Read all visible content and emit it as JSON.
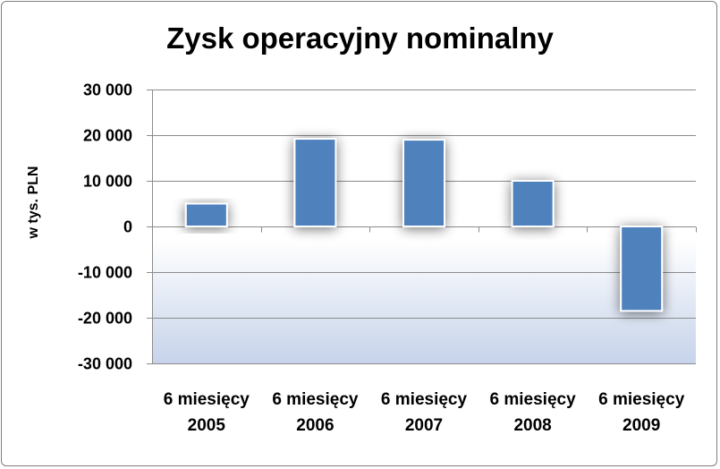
{
  "chart_data": {
    "type": "bar",
    "title": "Zysk operacyjny nominalny",
    "xlabel": "",
    "ylabel": "w tys. PLN",
    "categories": [
      [
        "6 miesięcy",
        "2005"
      ],
      [
        "6 miesięcy",
        "2006"
      ],
      [
        "6 miesięcy",
        "2007"
      ],
      [
        "6 miesięcy",
        "2008"
      ],
      [
        "6 miesięcy",
        "2009"
      ]
    ],
    "values": [
      5000,
      19200,
      19000,
      10000,
      -18500
    ],
    "ylim": [
      -30000,
      30000
    ],
    "yticks": [
      30000,
      20000,
      10000,
      0,
      -10000,
      -20000,
      -30000
    ],
    "ytick_labels": [
      "30 000",
      "20 000",
      "10 000",
      "0",
      "-10 000",
      "-20 000",
      "-30 000"
    ],
    "grid": true,
    "legend": "none",
    "colors": {
      "bar": "#4f81bd",
      "bar_border": "#ffffff",
      "grid": "#8c8c8c",
      "plot_gradient_bottom": "#c6d3ea"
    }
  }
}
